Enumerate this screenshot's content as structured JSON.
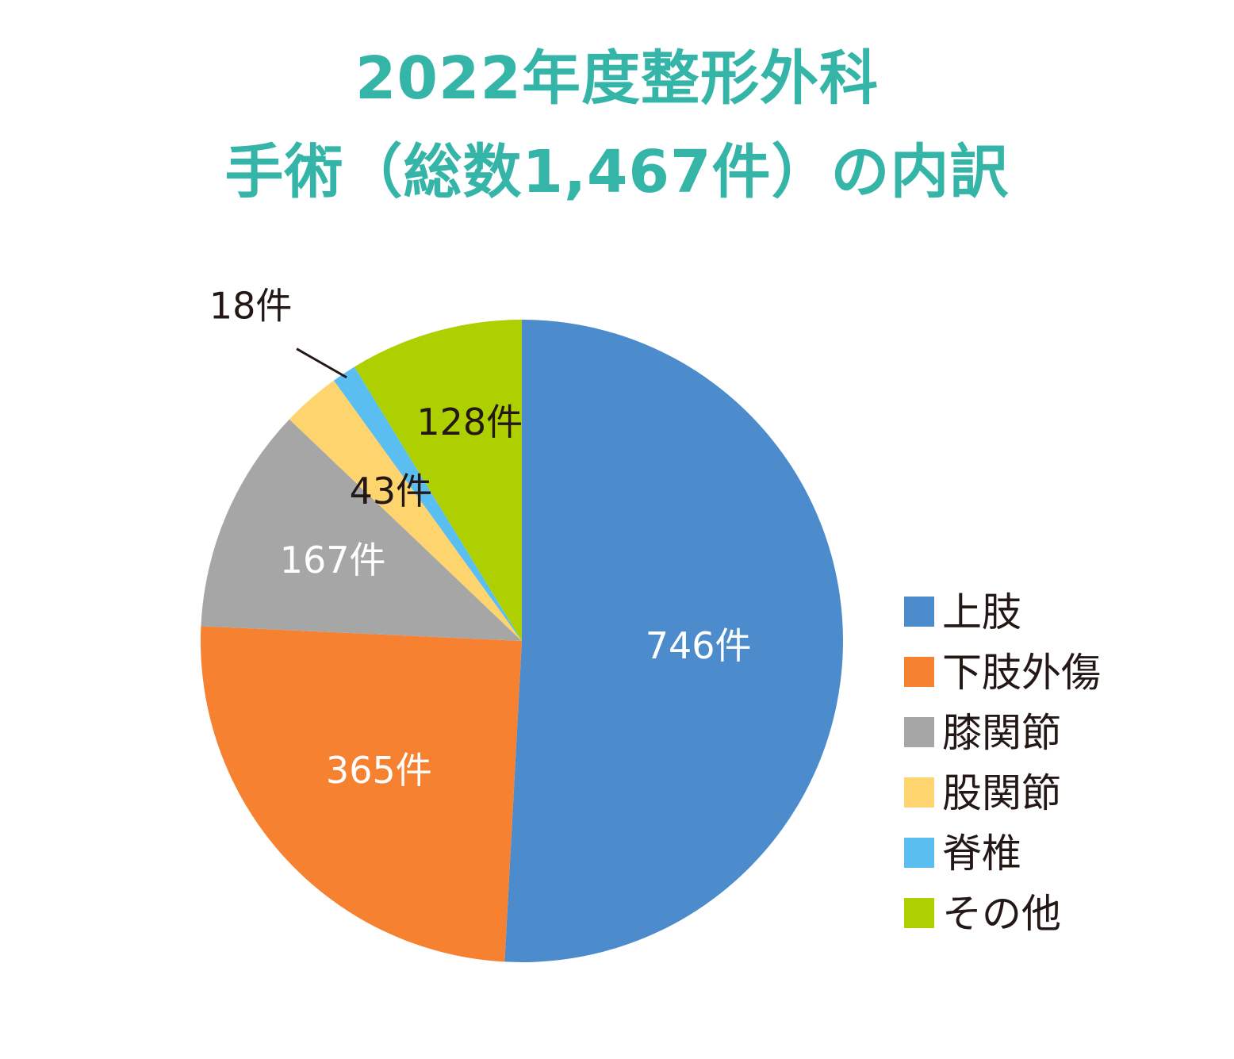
{
  "title": {
    "line1": "2022年度整形外科",
    "line2": "手術（総数1,467件）の内訳"
  },
  "chart_data": {
    "type": "pie",
    "title": "2022年度整形外科 手術（総数1,467件）の内訳",
    "unit": "件",
    "legend_position": "right",
    "slices": [
      {
        "name": "上肢",
        "value": 746,
        "label": "746件",
        "color": "#4d8ccc",
        "label_color": "#ffffff"
      },
      {
        "name": "下肢外傷",
        "value": 365,
        "label": "365件",
        "color": "#f58131",
        "label_color": "#ffffff"
      },
      {
        "name": "膝関節",
        "value": 167,
        "label": "167件",
        "color": "#a6a6a6",
        "label_color": "#ffffff"
      },
      {
        "name": "股関節",
        "value": 43,
        "label": "43件",
        "color": "#fed46e",
        "label_color": "#231815"
      },
      {
        "name": "脊椎",
        "value": 18,
        "label": "18件",
        "color": "#5bbef0",
        "label_color": "#231815"
      },
      {
        "name": "その他",
        "value": 128,
        "label": "128件",
        "color": "#aecf00",
        "label_color": "#231815"
      }
    ]
  }
}
